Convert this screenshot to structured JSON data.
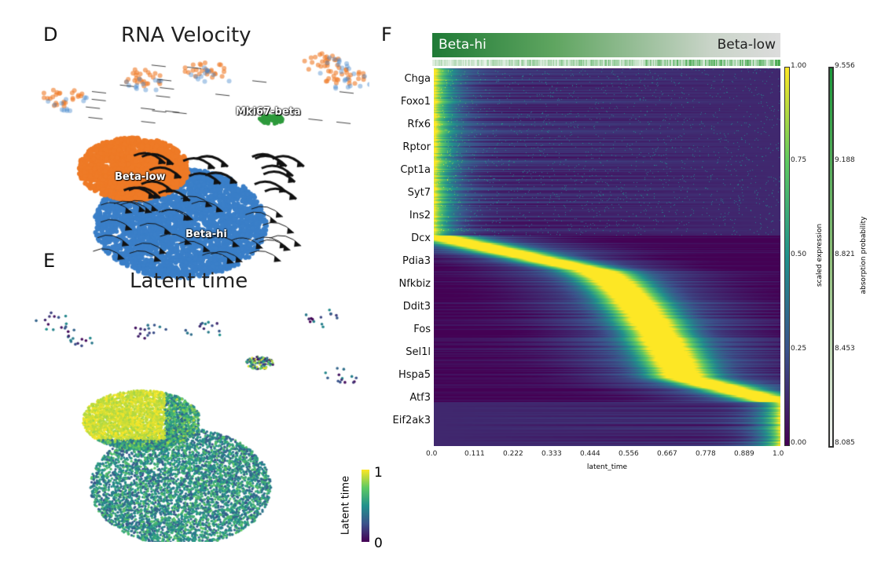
{
  "panels": {
    "D": {
      "letter": "D",
      "title": "RNA Velocity",
      "clusters": [
        "Mki67-beta",
        "Beta-low",
        "Beta-hi"
      ],
      "colors": {
        "Beta-hi": "#3a7fc8",
        "Beta-low": "#ee7a26",
        "Mki67-beta": "#2e9a3c"
      }
    },
    "E": {
      "letter": "E",
      "title": "Latent time",
      "colorbar": {
        "label": "Latent time",
        "max": "1",
        "min": "0"
      }
    },
    "F": {
      "letter": "F",
      "header_left": "Beta-hi",
      "header_right": "Beta-low"
    }
  },
  "chart_data": {
    "type": "heatmap",
    "xlabel": "latent_time",
    "xticks": [
      "0.0",
      "0.111",
      "0.222",
      "0.333",
      "0.444",
      "0.556",
      "0.667",
      "0.778",
      "0.889",
      "1.0"
    ],
    "xlim": [
      0,
      1
    ],
    "genes": [
      "Chga",
      "Foxo1",
      "Rfx6",
      "Rptor",
      "Cpt1a",
      "Syt7",
      "Ins2",
      "Dcx",
      "Pdia3",
      "Nfkbiz",
      "Ddit3",
      "Fos",
      "Sel1l",
      "Hspa5",
      "Atf3",
      "Eif2ak3"
    ],
    "gene_peak_latent_time": [
      0.0,
      0.0,
      0.0,
      0.0,
      0.0,
      0.0,
      0.0,
      0.05,
      0.3,
      0.55,
      0.63,
      0.66,
      0.68,
      0.72,
      1.0,
      1.0
    ],
    "colorbar_expression": {
      "label": "scaled expression",
      "ticks": [
        "1.00",
        "0.75",
        "0.50",
        "0.25",
        "0.00"
      ],
      "range": [
        0,
        1
      ]
    },
    "colorbar_absorption": {
      "label": "absorption probability",
      "ticks": [
        "9.556",
        "9.188",
        "8.821",
        "8.453",
        "8.085"
      ],
      "range": [
        8.085,
        9.556
      ]
    }
  }
}
